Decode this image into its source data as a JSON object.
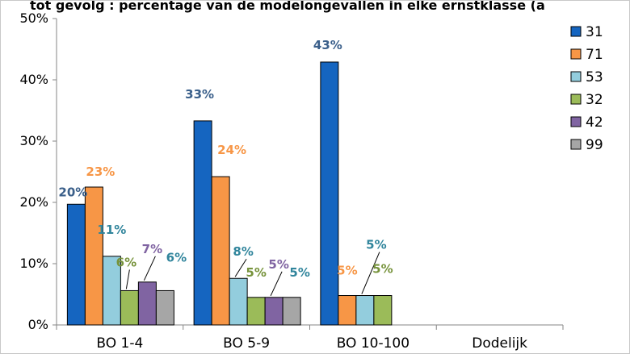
{
  "chart_data": {
    "type": "bar",
    "title": "tot gevolg : percentage van de modelongevallen in elke ernstklasse (a",
    "xlabel": "",
    "ylabel": "",
    "ylim": [
      0,
      50
    ],
    "yticks": [
      "0%",
      "10%",
      "20%",
      "30%",
      "40%",
      "50%"
    ],
    "categories": [
      "BO 1-4",
      "BO 5-9",
      "BO 10-100",
      "Dodelijk"
    ],
    "legend_position": "right",
    "grid": false,
    "series": [
      {
        "name": "31",
        "color": "#1565c0",
        "values": [
          19.7,
          33.3,
          42.9,
          null
        ],
        "labels": [
          "20%",
          "33%",
          "43%",
          ""
        ],
        "label_color": "#3a5f8a"
      },
      {
        "name": "71",
        "color": "#f79646",
        "values": [
          22.5,
          24.2,
          4.8,
          null
        ],
        "labels": [
          "23%",
          "24%",
          "5%",
          ""
        ],
        "label_color": "#f79646"
      },
      {
        "name": "53",
        "color": "#93cddd",
        "values": [
          11.2,
          7.6,
          4.8,
          null
        ],
        "labels": [
          "11%",
          "8%",
          "5%",
          ""
        ],
        "label_color": "#31859c"
      },
      {
        "name": "32",
        "color": "#9bbb59",
        "values": [
          5.6,
          4.5,
          4.8,
          null
        ],
        "labels": [
          "6%",
          "5%",
          "5%",
          ""
        ],
        "label_color": "#77933c"
      },
      {
        "name": "42",
        "color": "#8064a2",
        "values": [
          7.0,
          4.5,
          null,
          null
        ],
        "labels": [
          "7%",
          "5%",
          "",
          ""
        ],
        "label_color": "#8064a2"
      },
      {
        "name": "99",
        "color": "#a6a6a6",
        "values": [
          5.6,
          4.5,
          null,
          null
        ],
        "labels": [
          "6%",
          "5%",
          "",
          ""
        ],
        "label_color": "#31859c"
      }
    ]
  }
}
